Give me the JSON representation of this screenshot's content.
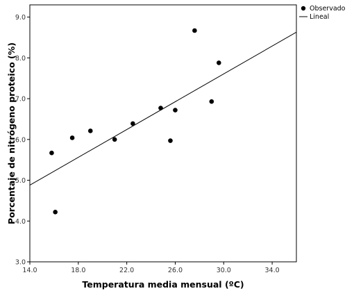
{
  "chart_data": {
    "type": "scatter",
    "xlabel": "Temperatura media mensual (ºC)",
    "ylabel": "Porcentaje de nitrógeno proteico (%)",
    "xlim": [
      14.0,
      36.0
    ],
    "ylim": [
      3.0,
      9.3
    ],
    "x_ticks": [
      14.0,
      18.0,
      22.0,
      26.0,
      30.0,
      34.0
    ],
    "x_tick_labels": [
      "14.0",
      "18.0",
      "22.0",
      "26.0",
      "30.0",
      "34.0"
    ],
    "y_ticks": [
      3.0,
      4.0,
      5.0,
      6.0,
      7.0,
      8.0,
      9.0
    ],
    "y_tick_labels": [
      "3.0",
      "4.0",
      "5.0",
      "6.0",
      "7.0",
      "8.0",
      "9.0"
    ],
    "grid": false,
    "legend_position": "outside-top-right",
    "series": [
      {
        "name": "Observado",
        "kind": "points",
        "color": "#000000",
        "points": [
          {
            "x": 15.8,
            "y": 5.67
          },
          {
            "x": 16.1,
            "y": 4.22
          },
          {
            "x": 17.5,
            "y": 6.04
          },
          {
            "x": 19.0,
            "y": 6.21
          },
          {
            "x": 21.0,
            "y": 6.0
          },
          {
            "x": 22.5,
            "y": 6.39
          },
          {
            "x": 24.8,
            "y": 6.77
          },
          {
            "x": 25.6,
            "y": 5.97
          },
          {
            "x": 26.0,
            "y": 6.72
          },
          {
            "x": 27.6,
            "y": 8.67
          },
          {
            "x": 29.0,
            "y": 6.93
          },
          {
            "x": 29.6,
            "y": 7.88
          }
        ]
      },
      {
        "name": "Lineal",
        "kind": "line",
        "color": "#000000",
        "points": [
          {
            "x": 14.0,
            "y": 4.88
          },
          {
            "x": 36.0,
            "y": 8.63
          }
        ]
      }
    ]
  }
}
